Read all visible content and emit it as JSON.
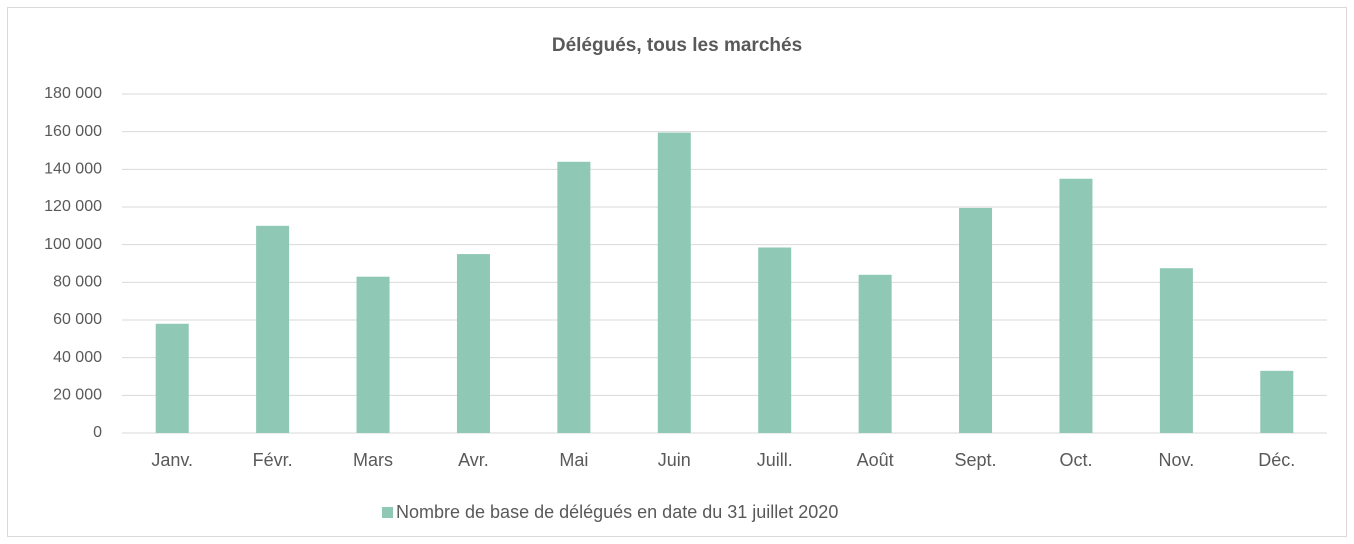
{
  "chart_data": {
    "type": "bar",
    "title": "Délégués, tous les marchés",
    "categories": [
      "Janv.",
      "Févr.",
      "Mars",
      "Avr.",
      "Mai",
      "Juin",
      "Juill.",
      "Août",
      "Sept.",
      "Oct.",
      "Nov.",
      "Déc."
    ],
    "series": [
      {
        "name": "Nombre de base de délégués en date du 31 juillet 2020",
        "color": "#8fc8b4",
        "values": [
          58000,
          110000,
          83000,
          95000,
          144000,
          159500,
          98500,
          84000,
          119500,
          135000,
          87500,
          33000
        ]
      }
    ],
    "ylim": [
      0,
      180000
    ],
    "yticks": [
      0,
      {
        "value": 20000,
        "label": "20 000"
      },
      {
        "value": 40000,
        "label": "40 000"
      },
      {
        "value": 60000,
        "label": "60 000"
      },
      {
        "value": 80000,
        "label": "80 000"
      },
      {
        "value": 100000,
        "label": "100 000"
      },
      {
        "value": 120000,
        "label": "120 000"
      },
      {
        "value": 140000,
        "label": "140 000"
      },
      {
        "value": 160000,
        "label": "160 000"
      },
      {
        "value": 180000,
        "label": "180 000"
      }
    ],
    "grid": true,
    "legend": "bottom"
  }
}
